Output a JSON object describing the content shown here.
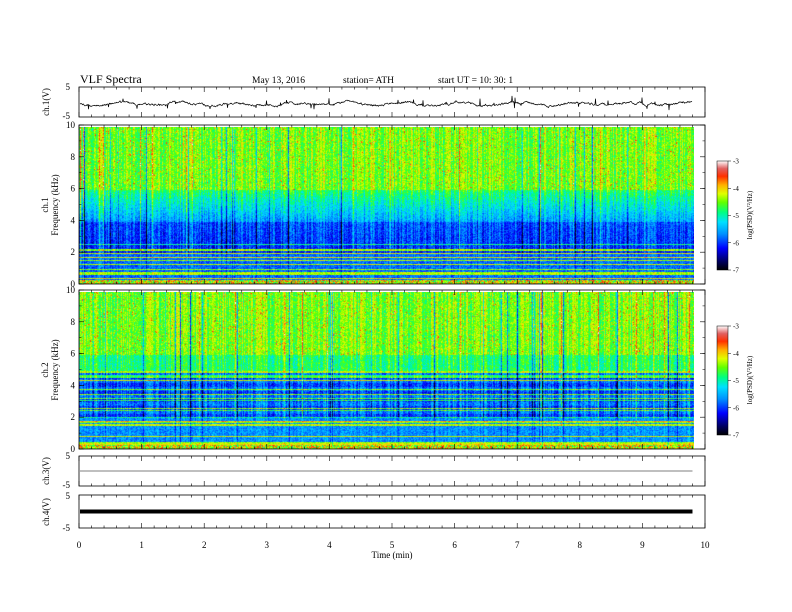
{
  "header": {
    "title": "VLF  Spectra",
    "date": "May 13, 2016",
    "station": "station= ATH",
    "start": "start  UT  =    10: 30: 1"
  },
  "colors": {
    "colormap": [
      "#000000",
      "#000070",
      "#0000d0",
      "#0050ff",
      "#00c8ff",
      "#00ffb0",
      "#40ff40",
      "#c8ff00",
      "#ffd700",
      "#ff7000",
      "#dd0000",
      "#ffffff"
    ],
    "trace": "#000000",
    "axis": "#000000"
  },
  "chart_data": [
    {
      "id": "ch1-waveform",
      "type": "line",
      "ylabel": "ch.1(V)",
      "yticks": [
        "5",
        "-5"
      ],
      "ylim": [
        -5,
        5
      ],
      "xlim": [
        0,
        10
      ],
      "description_level": 0.1,
      "data_end_min": 9.8
    },
    {
      "id": "ch1-spectrogram",
      "type": "heatmap",
      "ylabel_lines": [
        "ch.1",
        "Frequency (kHz)"
      ],
      "yticks": [
        "0",
        "2",
        "4",
        "6",
        "8",
        "10"
      ],
      "ylim": [
        0,
        10
      ],
      "xlim": [
        0,
        10
      ],
      "colorbar": {
        "label": "log(PSD)(V²/Hz)",
        "ticks": [
          "-3",
          "-4",
          "-5",
          "-6",
          "-7"
        ],
        "range": [
          -7,
          -3
        ]
      }
    },
    {
      "id": "ch2-spectrogram",
      "type": "heatmap",
      "ylabel_lines": [
        "ch.2",
        "Frequency (kHz)"
      ],
      "yticks": [
        "0",
        "2",
        "4",
        "6",
        "8",
        "10"
      ],
      "ylim": [
        0,
        10
      ],
      "xlim": [
        0,
        10
      ],
      "colorbar": {
        "label": "log(PSD)(V²/Hz)",
        "ticks": [
          "-3",
          "-4",
          "-5",
          "-6",
          "-7"
        ],
        "range": [
          -7,
          -3
        ]
      }
    },
    {
      "id": "ch3-waveform",
      "type": "line",
      "ylabel": "ch.3(V)",
      "yticks": [
        "5",
        "-5"
      ],
      "ylim": [
        -5,
        5
      ],
      "xlim": [
        0,
        10
      ],
      "level": 0
    },
    {
      "id": "ch4-waveform",
      "type": "line",
      "ylabel": "ch.4(V)",
      "yticks": [
        "5",
        "-5"
      ],
      "ylim": [
        -5,
        5
      ],
      "xlim": [
        0,
        10
      ],
      "level": 0
    }
  ],
  "xaxis": {
    "label": "Time  (min)",
    "ticks": [
      "0",
      "1",
      "2",
      "3",
      "4",
      "5",
      "6",
      "7",
      "8",
      "9",
      "10"
    ]
  }
}
